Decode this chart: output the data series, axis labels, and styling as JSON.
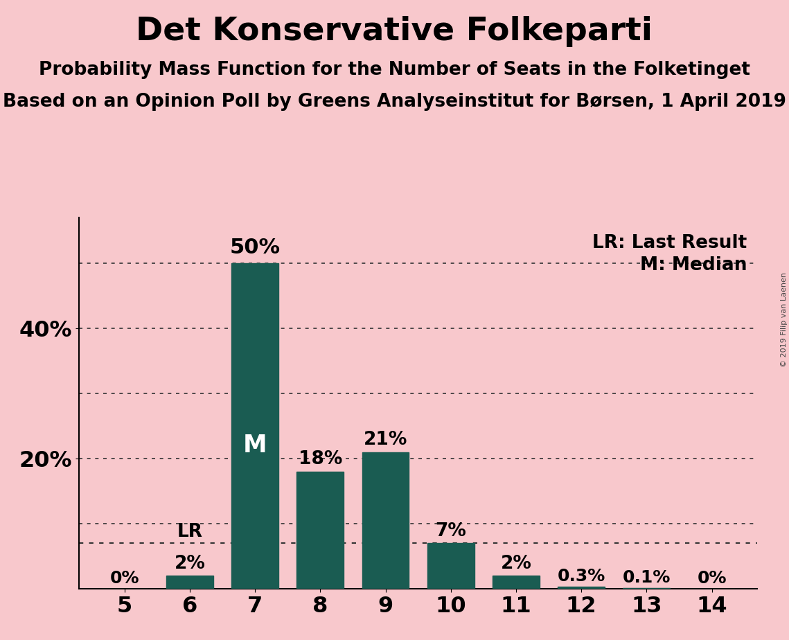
{
  "title": "Det Konservative Folkeparti",
  "subtitle1": "Probability Mass Function for the Number of Seats in the Folketinget",
  "subtitle2": "Based on an Opinion Poll by Greens Analyseinstitut for Børsen, 1 April 2019",
  "copyright": "© 2019 Filip van Laenen",
  "categories": [
    5,
    6,
    7,
    8,
    9,
    10,
    11,
    12,
    13,
    14
  ],
  "values": [
    0,
    2,
    50,
    18,
    21,
    7,
    2,
    0.3,
    0.1,
    0
  ],
  "bar_labels": [
    "0%",
    "2%",
    "50%",
    "18%",
    "21%",
    "7%",
    "2%",
    "0.3%",
    "0.1%",
    "0%"
  ],
  "bar_color": "#1a5c52",
  "background_color": "#f8c8cc",
  "title_fontsize": 34,
  "subtitle_fontsize": 19,
  "label_fontsize": 19,
  "tick_fontsize": 23,
  "ylim": [
    0,
    57
  ],
  "xlim": [
    4.3,
    14.7
  ],
  "dotted_lines_y": [
    10,
    20,
    30,
    40,
    50
  ],
  "lr_line_y": 7,
  "legend_lr": "LR: Last Result",
  "legend_m": "M: Median",
  "dotted_line_color": "#333333",
  "lr_label": "LR",
  "median_label": "M",
  "yticks": [
    20,
    40
  ],
  "ytick_labels": [
    "20%",
    "40%"
  ]
}
